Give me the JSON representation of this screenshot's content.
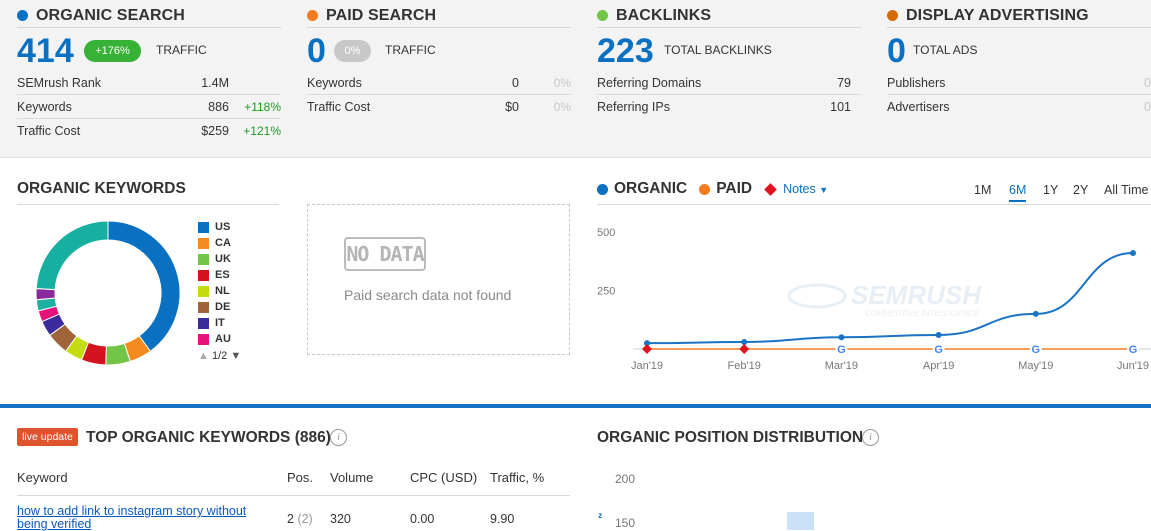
{
  "colors": {
    "organic": "#0a70c2",
    "paid": "#f47b20",
    "backlinks": "#72c547",
    "display": "#d26a06",
    "positive": "#1e9a1e",
    "pill_green": "#37b236",
    "pill_gray": "#c8c8c8"
  },
  "organic_search": {
    "title": "ORGANIC SEARCH",
    "value": "414",
    "badge": "+176%",
    "value_label": "TRAFFIC",
    "rows": [
      {
        "label": "SEMrush Rank",
        "value": "1.4M",
        "change": ""
      },
      {
        "label": "Keywords",
        "value": "886",
        "change": "+118%"
      },
      {
        "label": "Traffic Cost",
        "value": "$259",
        "change": "+121%"
      }
    ]
  },
  "paid_search": {
    "title": "PAID SEARCH",
    "value": "0",
    "badge": "0%",
    "value_label": "TRAFFIC",
    "rows": [
      {
        "label": "Keywords",
        "value": "0",
        "change": "0%"
      },
      {
        "label": "Traffic Cost",
        "value": "$0",
        "change": "0%"
      }
    ]
  },
  "backlinks": {
    "title": "BACKLINKS",
    "value": "223",
    "value_label": "TOTAL BACKLINKS",
    "rows": [
      {
        "label": "Referring Domains",
        "value": "79"
      },
      {
        "label": "Referring IPs",
        "value": "101"
      }
    ]
  },
  "display_advertising": {
    "title": "DISPLAY ADVERTISING",
    "value": "0",
    "value_label": "TOTAL ADS",
    "rows": [
      {
        "label": "Publishers",
        "value": "0"
      },
      {
        "label": "Advertisers",
        "value": "0"
      }
    ]
  },
  "organic_keywords": {
    "title": "ORGANIC KEYWORDS",
    "legend": [
      {
        "code": "US",
        "color": "#0a70c2"
      },
      {
        "code": "CA",
        "color": "#f58b1f"
      },
      {
        "code": "UK",
        "color": "#72c547"
      },
      {
        "code": "ES",
        "color": "#d3141e"
      },
      {
        "code": "NL",
        "color": "#c5dc12"
      },
      {
        "code": "DE",
        "color": "#a0643a"
      },
      {
        "code": "IT",
        "color": "#3a2a9a"
      },
      {
        "code": "AU",
        "color": "#e4127a"
      }
    ],
    "pager": "1/2"
  },
  "donut_data": {
    "type": "pie",
    "segments": [
      {
        "name": "US",
        "value": 40,
        "color": "#0a70c2"
      },
      {
        "name": "CA",
        "value": 5,
        "color": "#f58b1f"
      },
      {
        "name": "UK",
        "value": 5.5,
        "color": "#72c547"
      },
      {
        "name": "ES",
        "value": 5.5,
        "color": "#d3141e"
      },
      {
        "name": "NL",
        "value": 4,
        "color": "#c5dc12"
      },
      {
        "name": "DE",
        "value": 5,
        "color": "#a0643a"
      },
      {
        "name": "IT",
        "value": 3.5,
        "color": "#3a2a9a"
      },
      {
        "name": "AU",
        "value": 2.5,
        "color": "#e4127a"
      },
      {
        "name": "other1",
        "value": 2.5,
        "color": "#1bb0a1"
      },
      {
        "name": "other2",
        "value": 2.5,
        "color": "#8a2a9a"
      },
      {
        "name": "other3",
        "value": 24,
        "color": "#17b0a0"
      }
    ]
  },
  "no_data": {
    "badge": "NO DATA",
    "message": "Paid search data not found"
  },
  "trend": {
    "legend_organic": "ORGANIC",
    "legend_paid": "PAID",
    "notes_label": "Notes",
    "tabs": [
      "1M",
      "6M",
      "1Y",
      "2Y",
      "All Time"
    ],
    "active_tab": "6M",
    "watermark": "SEMRUSH",
    "watermark_sub": "COMPETITIVE INTELLIGENCE"
  },
  "chart_data": {
    "type": "line",
    "x": [
      "Jan'19",
      "Feb'19",
      "Mar'19",
      "Apr'19",
      "May'19",
      "Jun'19"
    ],
    "series": [
      {
        "name": "ORGANIC",
        "values": [
          25,
          30,
          50,
          60,
          150,
          410
        ]
      },
      {
        "name": "PAID",
        "values": [
          0,
          0,
          0,
          0,
          0,
          0
        ]
      }
    ],
    "yticks": [
      "500",
      "250"
    ],
    "ylim": [
      0,
      500
    ]
  },
  "top_keywords": {
    "live_badge": "live update",
    "title": "TOP ORGANIC KEYWORDS (886)",
    "headers": [
      "Keyword",
      "Pos.",
      "Volume",
      "CPC (USD)",
      "Traffic, %"
    ],
    "rows": [
      {
        "keyword": "how to add link to instagram story without being verified",
        "pos": "2",
        "prev": "(2)",
        "volume": "320",
        "cpc": "0.00",
        "traffic": "9.90"
      }
    ]
  },
  "position_distribution": {
    "title": "ORGANIC POSITION DISTRIBUTION",
    "yticks": [
      "200",
      "150"
    ]
  }
}
